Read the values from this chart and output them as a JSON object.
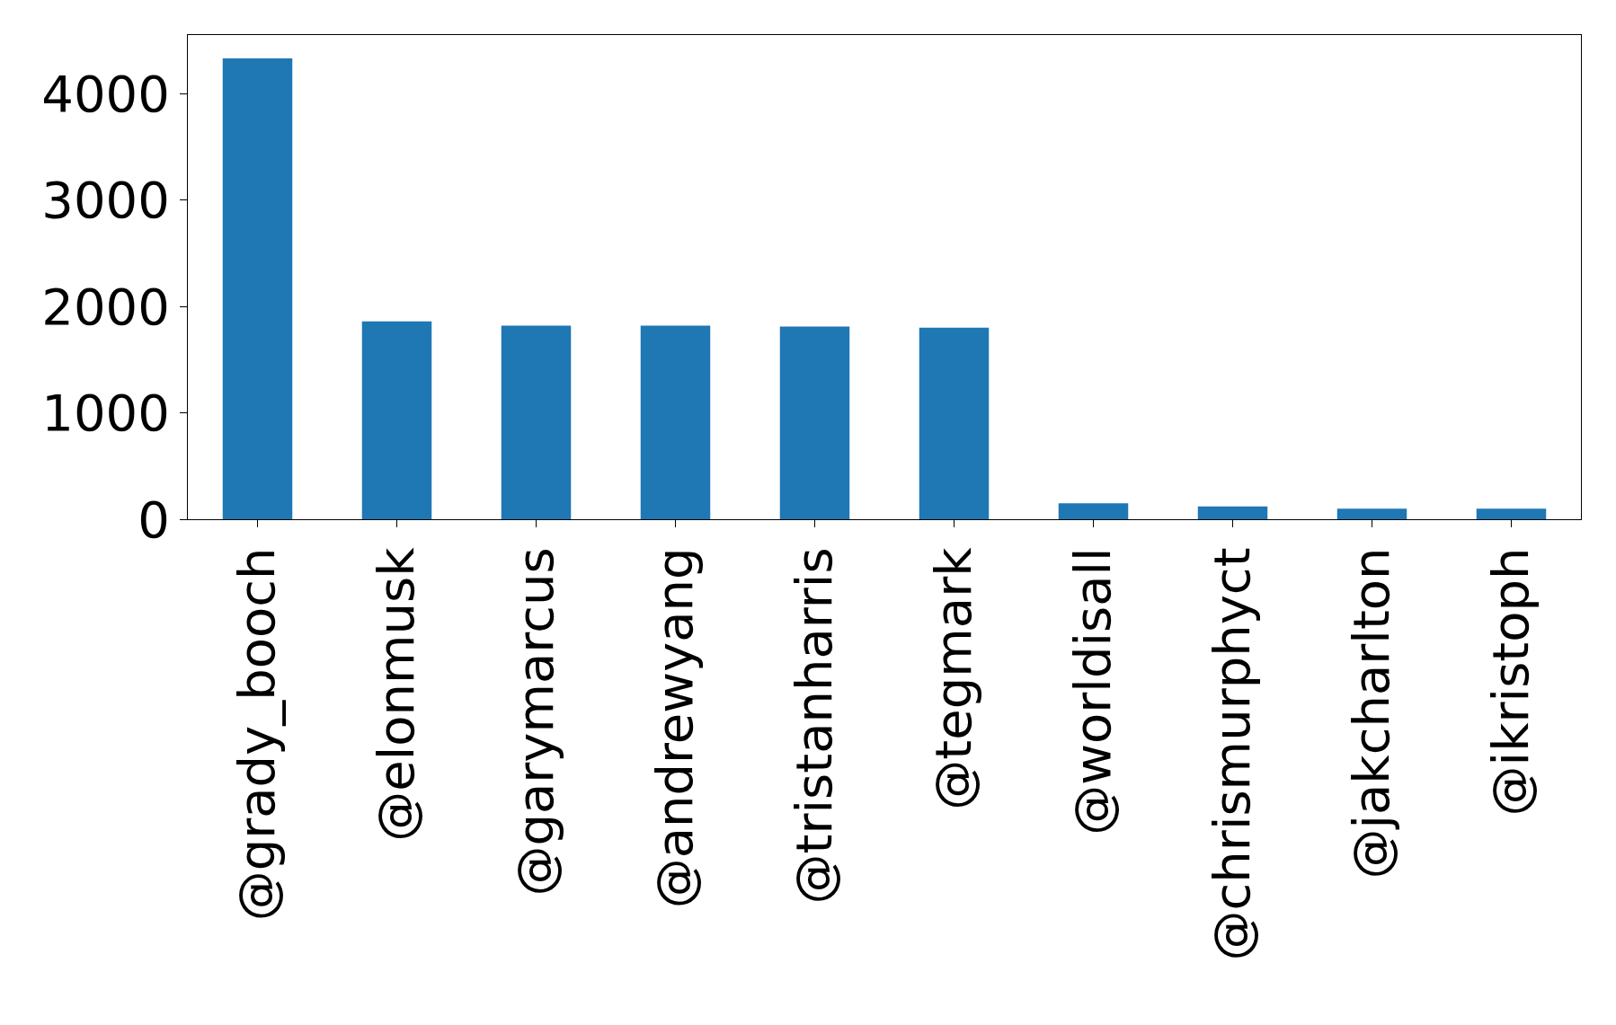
{
  "chart_data": {
    "type": "bar",
    "categories": [
      "@grady_booch",
      "@elonmusk",
      "@garymarcus",
      "@andrewyang",
      "@tristanharris",
      "@tegmark",
      "@worldisall",
      "@chrismurphyct",
      "@jakcharlton",
      "@ikristoph"
    ],
    "values": [
      4330,
      1860,
      1820,
      1820,
      1810,
      1800,
      150,
      120,
      100,
      100
    ],
    "color": "#1f77b4",
    "ylim": [
      0,
      4550
    ],
    "yticks": [
      0,
      1000,
      2000,
      3000,
      4000
    ]
  }
}
